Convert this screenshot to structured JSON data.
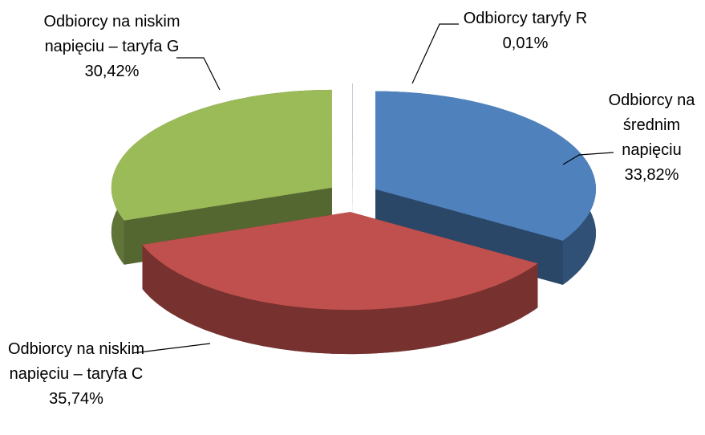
{
  "chart_data": {
    "type": "pie3d",
    "categories": [
      "Odbiorcy na średnim napięciu",
      "Odbiorcy na niskim napięciu – taryfa C",
      "Odbiorcy na niskim napięciu – taryfa G",
      "Odbiorcy taryfy R"
    ],
    "values": [
      33.82,
      35.74,
      30.42,
      0.01
    ],
    "value_labels": [
      "33,82%",
      "35,74%",
      "30,42%",
      "0,01%"
    ],
    "colors": [
      "#4f81bd",
      "#c0504d",
      "#9bbb59",
      "#8064a2"
    ],
    "exploded": true
  }
}
